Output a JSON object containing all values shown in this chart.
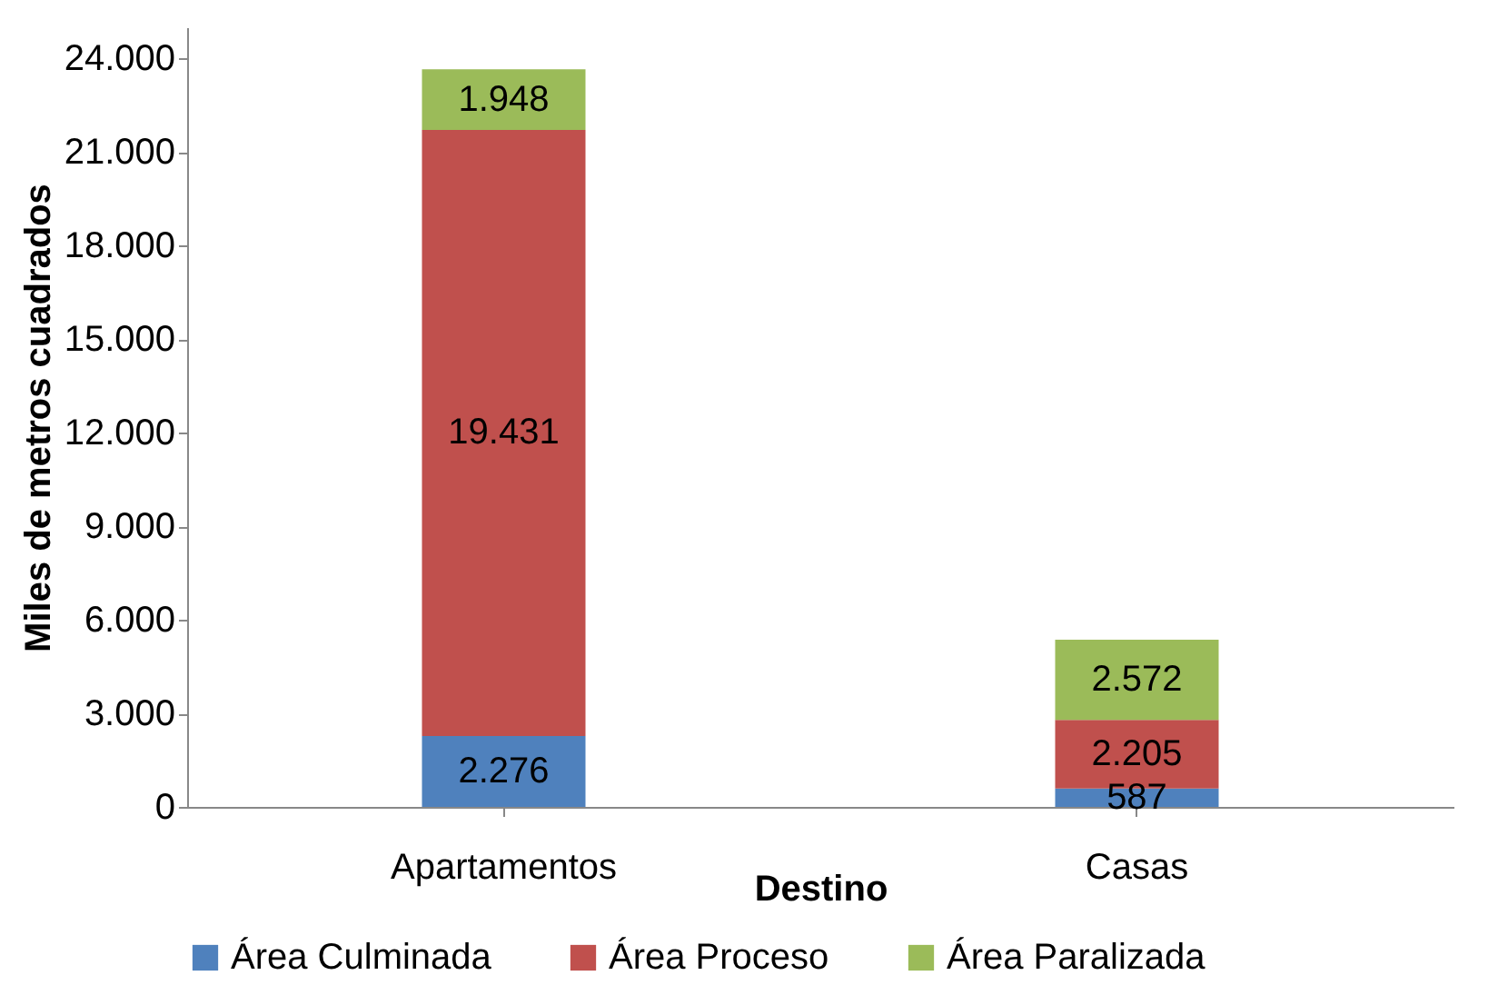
{
  "chart_data": {
    "type": "bar",
    "stacked": true,
    "xlabel": "Destino",
    "ylabel": "Miles de metros cuadrados",
    "categories": [
      "Apartamentos",
      "Casas"
    ],
    "series": [
      {
        "name": "Área Culminada",
        "color": "#4f81bd",
        "values": [
          2276,
          587
        ],
        "value_labels": [
          "2.276",
          "587"
        ]
      },
      {
        "name": "Área Proceso",
        "color": "#c0504d",
        "values": [
          19431,
          2205
        ],
        "value_labels": [
          "19.431",
          "2.205"
        ]
      },
      {
        "name": "Área Paralizada",
        "color": "#9bbb59",
        "values": [
          1948,
          2572
        ],
        "value_labels": [
          "1.948",
          "2.572"
        ]
      }
    ],
    "ylim": [
      0,
      25000
    ],
    "yticks": [
      {
        "value": 0,
        "label": "0"
      },
      {
        "value": 3000,
        "label": "3.000"
      },
      {
        "value": 6000,
        "label": "6.000"
      },
      {
        "value": 9000,
        "label": "9.000"
      },
      {
        "value": 12000,
        "label": "12.000"
      },
      {
        "value": 15000,
        "label": "15.000"
      },
      {
        "value": 18000,
        "label": "18.000"
      },
      {
        "value": 21000,
        "label": "21.000"
      },
      {
        "value": 24000,
        "label": "24.000"
      }
    ],
    "grid": false,
    "legend": "bottom"
  }
}
